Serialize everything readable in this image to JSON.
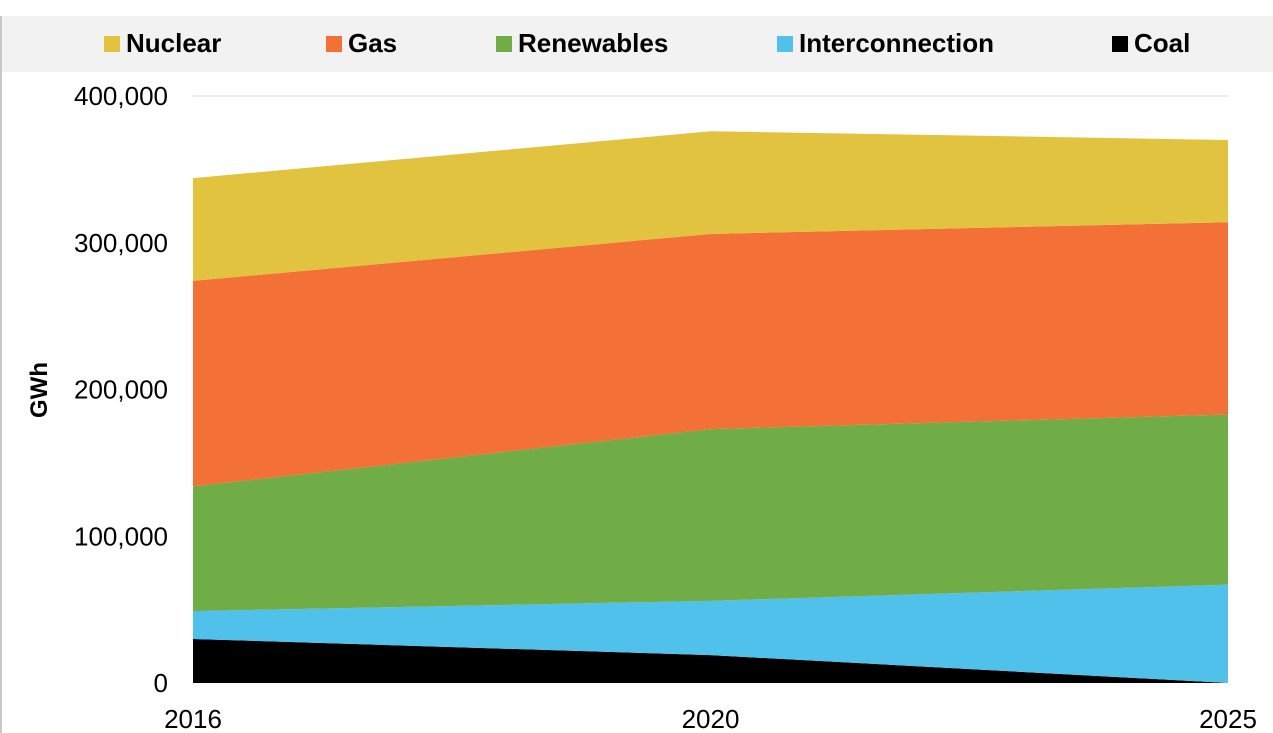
{
  "chart_data": {
    "type": "area",
    "stacked": true,
    "x": [
      "2016",
      "2020",
      "2025"
    ],
    "ylabel": "GWh",
    "ylim": [
      0,
      400000
    ],
    "yticks": [
      "0",
      "100,000",
      "200,000",
      "300,000",
      "400,000"
    ],
    "grid": false,
    "legend_position": "top",
    "series": [
      {
        "name": "Coal",
        "color": "#000000",
        "values": [
          30000,
          19000,
          0
        ]
      },
      {
        "name": "Interconnection",
        "color": "#4fc1ea",
        "values": [
          19000,
          37000,
          67000
        ]
      },
      {
        "name": "Renewables",
        "color": "#70ad47",
        "values": [
          85000,
          117000,
          116000
        ]
      },
      {
        "name": "Gas",
        "color": "#f37036",
        "values": [
          140000,
          133000,
          131000
        ]
      },
      {
        "name": "Nuclear",
        "color": "#e1c340",
        "values": [
          70000,
          70000,
          56000
        ]
      }
    ]
  }
}
